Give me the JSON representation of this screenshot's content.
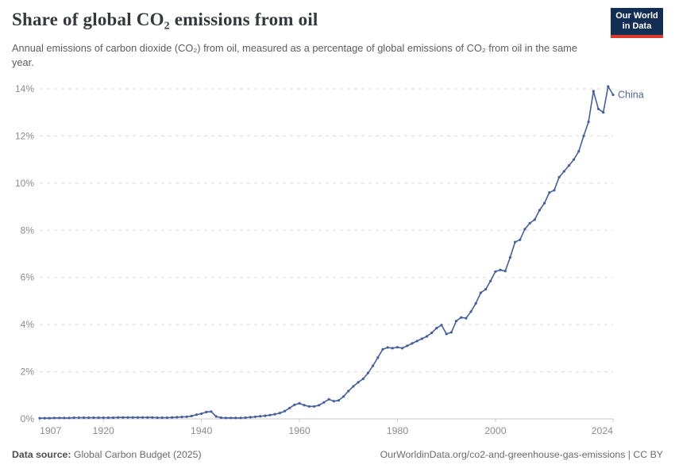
{
  "header": {
    "title": "Share of global CO₂ emissions from oil",
    "subtitle": "Annual emissions of carbon dioxide (CO₂) from oil, measured as a percentage of global emissions of CO₂ from oil in the same year.",
    "logo": {
      "line1": "Our World",
      "line2": "in Data",
      "bg_color": "#132e54",
      "accent_color": "#dc382c"
    }
  },
  "chart_data": {
    "type": "line",
    "title": "Share of global CO₂ emissions from oil",
    "xlabel": "",
    "ylabel": "",
    "xlim": [
      1907,
      2024
    ],
    "ylim": [
      0,
      14
    ],
    "x_ticks": [
      1907,
      1920,
      1940,
      1960,
      1980,
      2000,
      2024
    ],
    "y_ticks": [
      0,
      2,
      4,
      6,
      8,
      10,
      12,
      14
    ],
    "y_tick_suffix": "%",
    "grid": "horizontal-dashed",
    "legend_position": "end-of-line-label",
    "series": [
      {
        "name": "China",
        "color": "#44609c",
        "x_start": 1907,
        "x_end": 2024,
        "x_step": 1,
        "values": [
          0.03,
          0.03,
          0.03,
          0.04,
          0.04,
          0.04,
          0.04,
          0.05,
          0.05,
          0.05,
          0.05,
          0.05,
          0.05,
          0.05,
          0.05,
          0.05,
          0.06,
          0.06,
          0.06,
          0.06,
          0.06,
          0.06,
          0.06,
          0.06,
          0.05,
          0.05,
          0.05,
          0.06,
          0.07,
          0.08,
          0.09,
          0.12,
          0.18,
          0.22,
          0.29,
          0.31,
          0.1,
          0.05,
          0.04,
          0.04,
          0.04,
          0.04,
          0.05,
          0.07,
          0.09,
          0.11,
          0.13,
          0.16,
          0.2,
          0.25,
          0.33,
          0.46,
          0.6,
          0.66,
          0.58,
          0.53,
          0.53,
          0.58,
          0.7,
          0.83,
          0.75,
          0.78,
          0.95,
          1.18,
          1.38,
          1.55,
          1.7,
          1.95,
          2.25,
          2.6,
          2.95,
          3.03,
          3.0,
          3.04,
          3.0,
          3.1,
          3.2,
          3.3,
          3.4,
          3.5,
          3.65,
          3.85,
          3.98,
          3.6,
          3.67,
          4.15,
          4.3,
          4.27,
          4.55,
          4.9,
          5.35,
          5.5,
          5.85,
          6.25,
          6.32,
          6.27,
          6.85,
          7.5,
          7.6,
          8.05,
          8.3,
          8.45,
          8.85,
          9.15,
          9.6,
          9.7,
          10.25,
          10.5,
          10.75,
          11.0,
          11.35,
          12.0,
          12.6,
          13.9,
          13.15,
          13.0,
          14.1,
          13.75
        ]
      }
    ],
    "colors": {
      "gridline": "#dadada",
      "axis_line": "#c8c8c8",
      "tick_label": "#8c8c8c",
      "line": "#44609c",
      "end_label": "#4d659d"
    }
  },
  "footer": {
    "source_label": "Data source:",
    "source_value": " Global Carbon Budget (2025)",
    "credit": "OurWorldinData.org/co2-and-greenhouse-gas-emissions | CC BY"
  }
}
